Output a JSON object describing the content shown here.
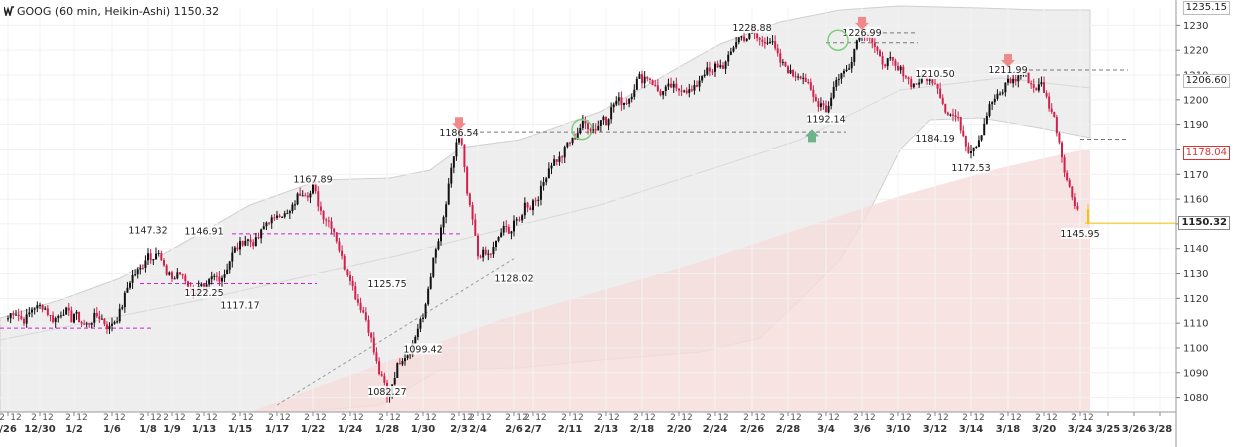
{
  "header": {
    "symbol": "GOOG",
    "interval": "60 min",
    "chart_style": "Heikin-Ashi",
    "last_price": "1150.32",
    "title_text": "GOOG (60 min, Heikin-Ashi) 1150.32"
  },
  "colors": {
    "up": "#111111",
    "down": "#d0214c",
    "band_fill": "#eeeeee",
    "band_edge": "#cfcfcf",
    "red_zone": "#f6dcdc",
    "support": "#d022d0",
    "resistance": "#777777",
    "marker_red": "#f08a8a",
    "marker_green": "#6fb38a",
    "circle": "#7fcf7f",
    "last_price": "#f5c400"
  },
  "price_axis": {
    "ticks": [
      1080,
      1090,
      1100,
      1110,
      1120,
      1130,
      1140,
      1150,
      1160,
      1170,
      1180,
      1190,
      1200,
      1210,
      1220,
      1230
    ],
    "top_label": "1235.15",
    "tag_1206": "1206.60",
    "tag_1178": "1178.04",
    "tag_last": "1150.32"
  },
  "date_axis": {
    "dates": [
      "/26",
      "12/30",
      "1/2",
      "1/6",
      "1/8",
      "1/9",
      "1/13",
      "1/15",
      "1/17",
      "1/22",
      "1/24",
      "1/28",
      "1/30",
      "2/3",
      "2/4",
      "2/6",
      "2/7",
      "2/11",
      "2/13",
      "2/18",
      "2/20",
      "2/24",
      "2/26",
      "2/28",
      "3/4",
      "3/6",
      "3/10",
      "3/12",
      "3/14",
      "3/18",
      "3/20",
      "3/24",
      "3/25",
      "3/26",
      "3/28"
    ],
    "hour_labels": [
      "2",
      "12"
    ]
  },
  "chart_data": {
    "type": "candlestick",
    "title": "GOOG (60 min, Heikin-Ashi) 1150.32",
    "ylim": [
      1075,
      1237
    ],
    "anchors": [
      {
        "date": "12/26",
        "close": 1112
      },
      {
        "date": "12/30",
        "close": 1115
      },
      {
        "date": "1/2",
        "close": 1112
      },
      {
        "date": "1/6",
        "close": 1110
      },
      {
        "date": "1/8",
        "close": 1140
      },
      {
        "date": "1/9",
        "close": 1130
      },
      {
        "date": "1/13",
        "close": 1122
      },
      {
        "date": "1/15",
        "close": 1140
      },
      {
        "date": "1/17",
        "close": 1152
      },
      {
        "date": "1/22",
        "close": 1165
      },
      {
        "date": "1/24",
        "close": 1130
      },
      {
        "date": "1/28",
        "close": 1082
      },
      {
        "date": "1/30",
        "close": 1112
      },
      {
        "date": "2/3",
        "close": 1186
      },
      {
        "date": "2/4",
        "close": 1135
      },
      {
        "date": "2/6",
        "close": 1150
      },
      {
        "date": "2/7",
        "close": 1160
      },
      {
        "date": "2/11",
        "close": 1185
      },
      {
        "date": "2/13",
        "close": 1193
      },
      {
        "date": "2/18",
        "close": 1208
      },
      {
        "date": "2/20",
        "close": 1202
      },
      {
        "date": "2/24",
        "close": 1212
      },
      {
        "date": "2/26",
        "close": 1229
      },
      {
        "date": "2/28",
        "close": 1214
      },
      {
        "date": "3/4",
        "close": 1197
      },
      {
        "date": "3/6",
        "close": 1227
      },
      {
        "date": "3/10",
        "close": 1210
      },
      {
        "date": "3/12",
        "close": 1206
      },
      {
        "date": "3/14",
        "close": 1180
      },
      {
        "date": "3/18",
        "close": 1210
      },
      {
        "date": "3/20",
        "close": 1206
      },
      {
        "date": "3/24",
        "close": 1150
      }
    ],
    "labels": [
      {
        "text": "1147.32",
        "date": "1/8",
        "price": 1147.32
      },
      {
        "text": "1146.91",
        "date": "1/13",
        "price": 1146.91
      },
      {
        "text": "1122.25",
        "date": "1/13",
        "price": 1122.25
      },
      {
        "text": "1117.17",
        "date": "1/15",
        "price": 1117.17
      },
      {
        "text": "1167.89",
        "date": "1/22",
        "price": 1167.89
      },
      {
        "text": "1125.75",
        "date": "1/28",
        "price": 1125.75
      },
      {
        "text": "1099.42",
        "date": "1/30",
        "price": 1099.42
      },
      {
        "text": "1082.27",
        "date": "1/28",
        "price": 1082.27
      },
      {
        "text": "1186.54",
        "date": "2/3",
        "price": 1186.54
      },
      {
        "text": "1128.02",
        "date": "2/6",
        "price": 1128.02
      },
      {
        "text": "1228.88",
        "date": "2/26",
        "price": 1228.88
      },
      {
        "text": "1192.14",
        "date": "3/4",
        "price": 1192.14
      },
      {
        "text": "1226.99",
        "date": "3/6",
        "price": 1226.99
      },
      {
        "text": "1210.50",
        "date": "3/12",
        "price": 1210.5
      },
      {
        "text": "1184.19",
        "date": "3/12",
        "price": 1184.19
      },
      {
        "text": "1172.53",
        "date": "3/14",
        "price": 1172.53
      },
      {
        "text": "1211.99",
        "date": "3/18",
        "price": 1211.99
      },
      {
        "text": "1145.95",
        "date": "3/24",
        "price": 1145.95
      }
    ],
    "support_lines": [
      {
        "price": 1108,
        "from": "12/26",
        "to": "1/6"
      },
      {
        "price": 1126,
        "from": "1/8",
        "to": "1/17"
      },
      {
        "price": 1146,
        "from": "1/15",
        "to": "1/30"
      }
    ],
    "resistance_lines": [
      {
        "price": 1187,
        "from": "2/3",
        "to": "3/4"
      },
      {
        "price": 1227,
        "from": "3/6",
        "to": "3/10"
      },
      {
        "price": 1223,
        "from": "3/4",
        "to": "3/10"
      },
      {
        "price": 1212,
        "from": "3/18",
        "to": "3/25"
      },
      {
        "price": 1184,
        "from": "3/24",
        "to": "3/25"
      }
    ],
    "trendline": {
      "from_date": "1/17",
      "from_price": 1077,
      "to_date": "2/6",
      "to_price": 1136
    },
    "down_arrows": [
      {
        "date": "2/3",
        "price": 1186.54
      },
      {
        "date": "3/6",
        "price": 1226.99
      },
      {
        "date": "3/18",
        "price": 1211.99
      }
    ],
    "up_arrows": [
      {
        "date": "3/4",
        "price": 1192.14
      }
    ],
    "circles": [
      {
        "date": "2/13",
        "price": 1188
      },
      {
        "date": "3/6",
        "price": 1224
      }
    ]
  }
}
